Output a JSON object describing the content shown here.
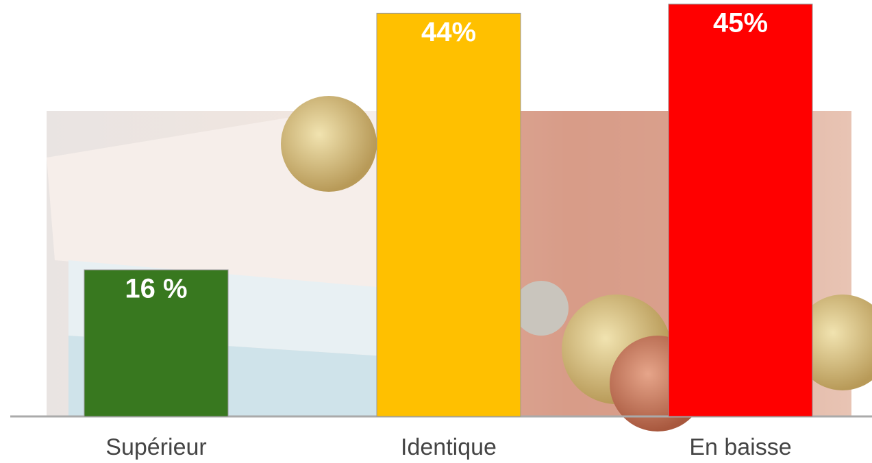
{
  "chart_data": {
    "type": "bar",
    "categories": [
      "Supérieur",
      "Identique",
      "En baisse"
    ],
    "values": [
      16,
      44,
      45
    ],
    "value_labels": [
      "16 %",
      "44%",
      "45%"
    ],
    "colors": [
      "#38781f",
      "#ffc000",
      "#ff0000"
    ]
  }
}
